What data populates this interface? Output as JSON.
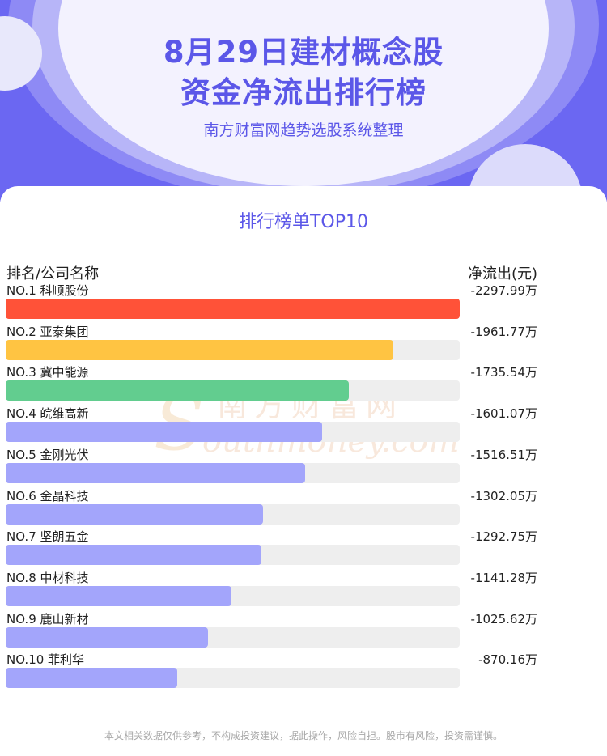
{
  "header": {
    "title_line1": "8月29日建材概念股",
    "title_line2": "资金净流出排行榜",
    "subtitle": "南方财富网趋势选股系统整理"
  },
  "card": {
    "title": "排行榜单TOP10",
    "col_left": "排名/公司名称",
    "col_right": "净流出(元)"
  },
  "watermark": {
    "cn": "南方财富网",
    "en": "outhmoney.com",
    "mark": "S"
  },
  "disclaimer": "本文相关数据仅供参考，不构成投资建议，据此操作，风险自担。股市有风险，投资需谨慎。",
  "chart_data": {
    "type": "bar",
    "orientation": "horizontal",
    "unit": "万",
    "categories": [
      "NO.1 科顺股份",
      "NO.2 亚泰集团",
      "NO.3 冀中能源",
      "NO.4 皖维高新",
      "NO.5 金刚光伏",
      "NO.6 金晶科技",
      "NO.7 坚朗五金",
      "NO.8 中材科技",
      "NO.9 鹿山新材",
      "NO.10 菲利华"
    ],
    "values": [
      -2297.99,
      -1961.77,
      -1735.54,
      -1601.07,
      -1516.51,
      -1302.05,
      -1292.75,
      -1141.28,
      -1025.62,
      -870.16
    ],
    "value_labels": [
      "-2297.99万",
      "-1961.77万",
      "-1735.54万",
      "-1601.07万",
      "-1516.51万",
      "-1302.05万",
      "-1292.75万",
      "-1141.28万",
      "-1025.62万",
      "-870.16万"
    ],
    "colors": [
      "#ff5238",
      "#ffc442",
      "#62cd8f",
      "#a3a5fb",
      "#a3a5fb",
      "#a3a5fb",
      "#a3a5fb",
      "#a3a5fb",
      "#a3a5fb",
      "#a3a5fb"
    ],
    "track_color": "#eeeeee"
  }
}
